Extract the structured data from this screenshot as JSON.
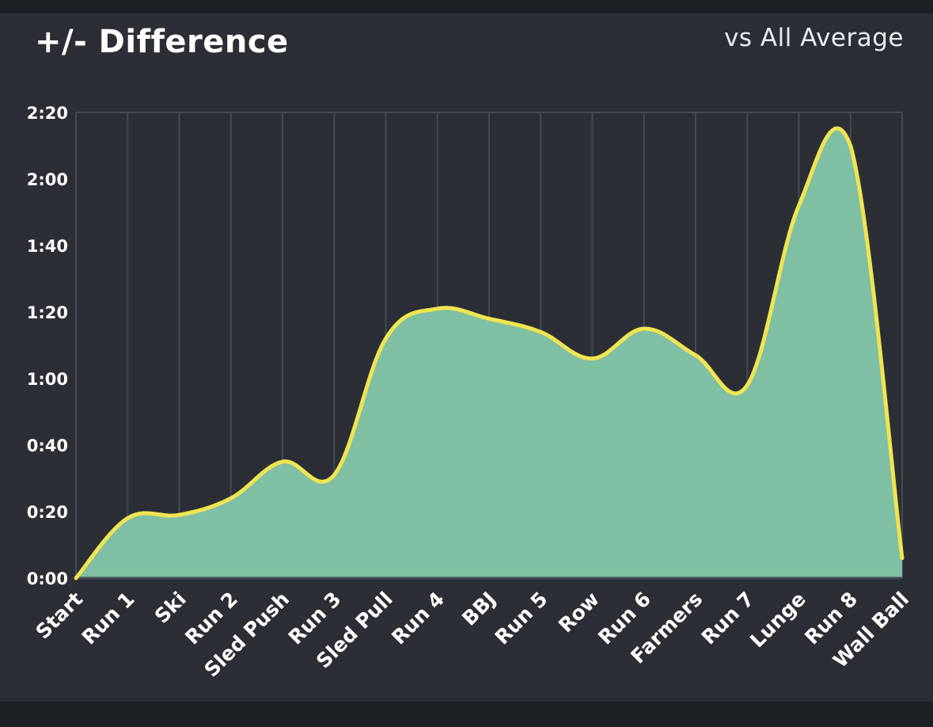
{
  "header": {
    "title": "+/- Difference",
    "subtitle": "vs All Average"
  },
  "colors": {
    "background": "#2b2f35",
    "grid": "#454a52",
    "area_fill": "#7fbfa3",
    "line": "#f0e451",
    "text": "#ffffff"
  },
  "chart_data": {
    "type": "area",
    "title": "+/- Difference",
    "subtitle": "vs All Average",
    "categories": [
      "Start",
      "Run 1",
      "Ski",
      "Run 2",
      "Sled Push",
      "Run 3",
      "Sled Pull",
      "Run 4",
      "BBJ",
      "Run 5",
      "Row",
      "Run 6",
      "Farmers",
      "Run 7",
      "Lunge",
      "Run 8",
      "Wall Ball"
    ],
    "values": [
      0,
      18,
      19,
      24,
      35,
      31,
      72,
      81,
      78,
      74,
      66,
      75,
      67,
      58,
      112,
      130,
      6
    ],
    "value_unit": "seconds",
    "yticks": [
      "0:00",
      "0:20",
      "0:40",
      "1:00",
      "1:20",
      "1:40",
      "2:00",
      "2:20"
    ],
    "ylim": [
      0,
      140
    ],
    "grid": true,
    "legend": "none"
  }
}
